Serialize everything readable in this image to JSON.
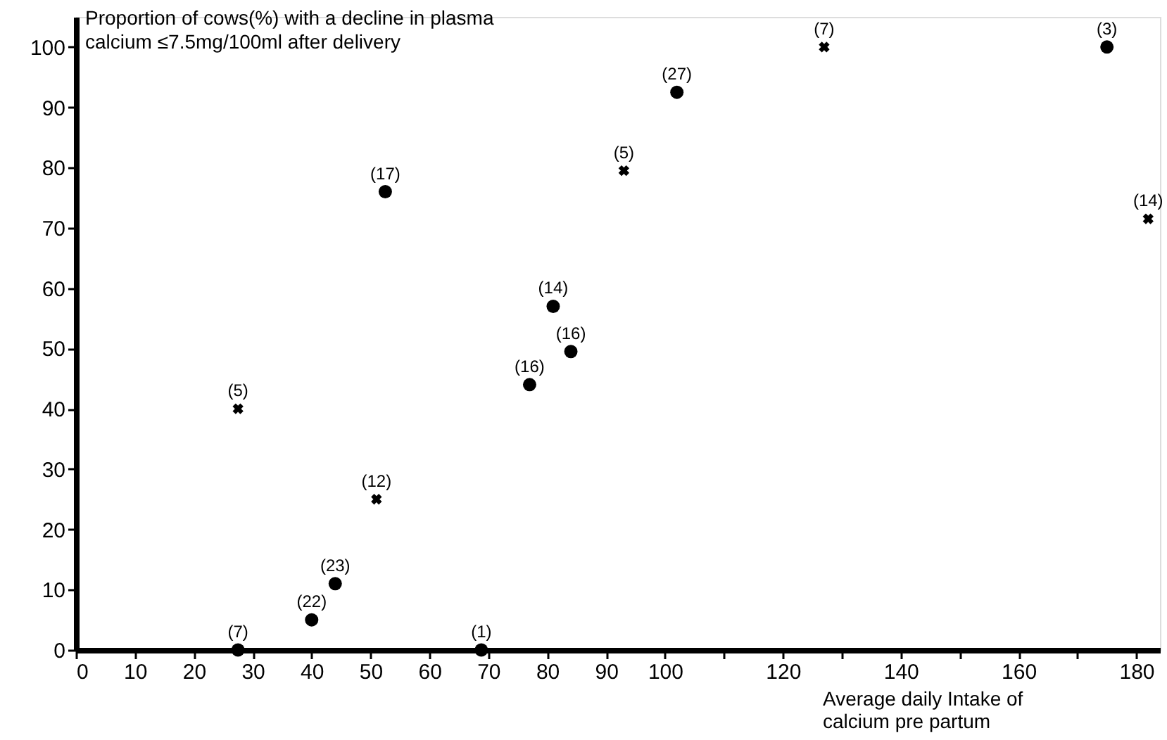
{
  "chart_data": {
    "type": "scatter",
    "ylabel": "Proportion of cows(%) with a decline in plasma calcium ≤7.5mg/100ml after delivery",
    "xlabel": "Average daily Intake of calcium pre partum",
    "xlim": [
      0,
      184
    ],
    "ylim": [
      0,
      105
    ],
    "xticks": [
      0,
      10,
      20,
      30,
      40,
      50,
      60,
      70,
      80,
      90,
      100,
      {
        "value": 110,
        "label": null
      },
      120,
      {
        "value": 130,
        "label": null
      },
      140,
      {
        "value": 150,
        "label": null
      },
      160,
      {
        "value": 170,
        "label": null
      },
      180
    ],
    "yticks": [
      0,
      10,
      20,
      30,
      40,
      50,
      60,
      70,
      80,
      90,
      100
    ],
    "grid": false,
    "series": [
      {
        "color": "#000000",
        "marker": "circle",
        "x": [
          52.5,
          68.8,
          77,
          81,
          84,
          102,
          175
        ],
        "values": [
          76,
          0,
          44,
          57,
          49.5,
          92.5,
          100
        ]
      },
      {
        "color": "#000000",
        "marker": "cross",
        "x": [
          27.5,
          51,
          93,
          127,
          182
        ],
        "values": [
          40,
          25,
          79.5,
          100,
          71.5
        ]
      },
      {
        "color": "#000000",
        "marker": "circle",
        "x": [
          27.5,
          40,
          44
        ],
        "values": [
          0,
          5,
          11
        ]
      }
    ],
    "annotations": [
      {
        "text": "(17)",
        "x": 52.5,
        "y": 76
      },
      {
        "text": "(1)",
        "x": 68.8,
        "y": 0
      },
      {
        "text": "(16)",
        "x": 77,
        "y": 44
      },
      {
        "text": "(14)",
        "x": 81,
        "y": 57
      },
      {
        "text": "(16)",
        "x": 84,
        "y": 49.5
      },
      {
        "text": "(27)",
        "x": 102,
        "y": 92.5
      },
      {
        "text": "(3)",
        "x": 175,
        "y": 100
      },
      {
        "text": "(5)",
        "x": 27.5,
        "y": 40
      },
      {
        "text": "(12)",
        "x": 51,
        "y": 25
      },
      {
        "text": "(5)",
        "x": 93,
        "y": 79.5
      },
      {
        "text": "(7)",
        "x": 127,
        "y": 100
      },
      {
        "text": "(14)",
        "x": 182,
        "y": 71.5
      },
      {
        "text": "(7)",
        "x": 27.5,
        "y": 0
      },
      {
        "text": "(22)",
        "x": 40,
        "y": 5
      },
      {
        "text": "(23)",
        "x": 44,
        "y": 11
      }
    ]
  }
}
